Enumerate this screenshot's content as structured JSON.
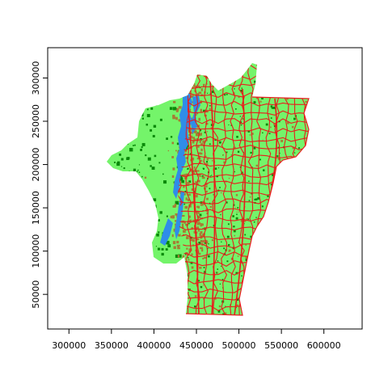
{
  "chart_data": {
    "type": "raster-map",
    "title": "",
    "xlabel": "",
    "ylabel": "",
    "xlim": [
      275000,
      645000
    ],
    "ylim": [
      10000,
      335000
    ],
    "x_ticks": [
      {
        "value": 300000,
        "label": "300000"
      },
      {
        "value": 350000,
        "label": "350000"
      },
      {
        "value": 400000,
        "label": "400000"
      },
      {
        "value": 450000,
        "label": "450000"
      },
      {
        "value": 500000,
        "label": "500000"
      },
      {
        "value": 550000,
        "label": "550000"
      },
      {
        "value": 600000,
        "label": "600000"
      }
    ],
    "y_ticks": [
      {
        "value": 50000,
        "label": "50000"
      },
      {
        "value": 100000,
        "label": "100000"
      },
      {
        "value": 150000,
        "label": "150000"
      },
      {
        "value": 200000,
        "label": "200000"
      },
      {
        "value": 250000,
        "label": "250000"
      },
      {
        "value": 300000,
        "label": "300000"
      }
    ],
    "colors": {
      "land_light": "#74f46a",
      "forest_dark": "#0a8a0a",
      "brown": "#a67c34",
      "water": "#2f8de8",
      "boundary": "#e81c1c",
      "frame": "#000000"
    }
  }
}
